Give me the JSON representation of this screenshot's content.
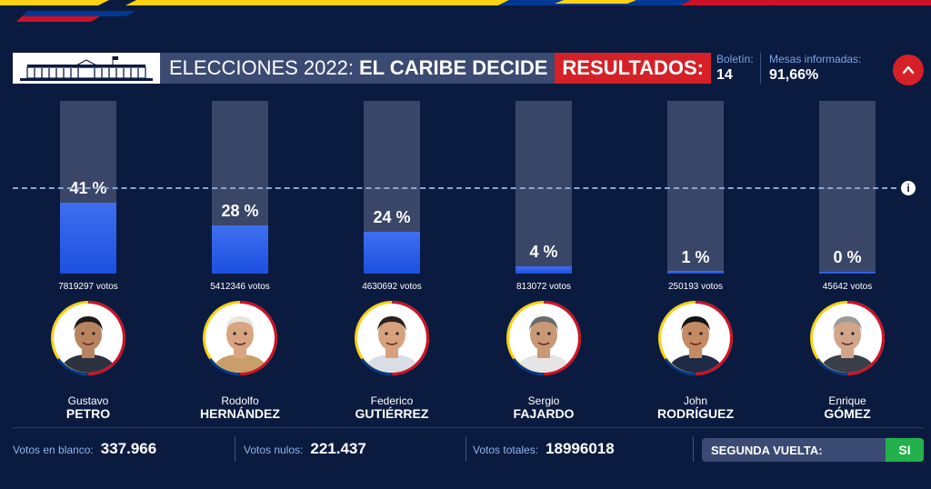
{
  "header": {
    "title_light": "ELECCIONES 2022:",
    "title_bold": "EL CARIBE DECIDE",
    "results_label": "RESULTADOS:"
  },
  "meta": {
    "bulletin_label": "Boletín:",
    "bulletin_value": "14",
    "tables_label": "Mesas informadas:",
    "tables_value": "91,66%"
  },
  "colors": {
    "background": "#0b1b3f",
    "bar_fill": "#1c4fe0",
    "accent_red": "#d62027",
    "accent_green": "#22b14c",
    "flag_yellow": "#fcd116",
    "flag_blue": "#003893",
    "flag_red": "#ce1126"
  },
  "candidates": [
    {
      "pct_label": "41 %",
      "pct_value": 41,
      "votes": "7819297 votos",
      "first_name": "Gustavo",
      "last_name": "PETRO",
      "suit": "#2d3240",
      "skin": "#b88360",
      "hair": "#1c1a1a"
    },
    {
      "pct_label": "28 %",
      "pct_value": 28,
      "votes": "5412346 votos",
      "first_name": "Rodolfo",
      "last_name": "HERNÁNDEZ",
      "suit": "#c99e6a",
      "skin": "#d8a481",
      "hair": "#e8e4de"
    },
    {
      "pct_label": "24 %",
      "pct_value": 24,
      "votes": "4630692 votos",
      "first_name": "Federico",
      "last_name": "GUTIÉRREZ",
      "suit": "#d9dee6",
      "skin": "#d6a27e",
      "hair": "#2a2220"
    },
    {
      "pct_label": "4 %",
      "pct_value": 4,
      "votes": "813072 votos",
      "first_name": "Sergio",
      "last_name": "FAJARDO",
      "suit": "#e5e5e5",
      "skin": "#c99876",
      "hair": "#6b6b6b"
    },
    {
      "pct_label": "1 %",
      "pct_value": 1,
      "votes": "250193 votos",
      "first_name": "John",
      "last_name": "RODRÍGUEZ",
      "suit": "#1f2a44",
      "skin": "#c48a63",
      "hair": "#141414"
    },
    {
      "pct_label": "0 %",
      "pct_value": 0,
      "votes": "45642 votos",
      "first_name": "Enrique",
      "last_name": "GÓMEZ",
      "suit": "#3a3f4a",
      "skin": "#d1a58a",
      "hair": "#9a9a9a"
    }
  ],
  "footer": {
    "blank_label": "Votos en blanco:",
    "blank_value": "337.966",
    "null_label": "Votos nulos:",
    "null_value": "221.437",
    "total_label": "Votos totales:",
    "total_value": "18996018",
    "runoff_label": "SEGUNDA VUELTA:",
    "runoff_value": "SI"
  },
  "icons": [
    "capitol-building-icon",
    "chevron-up-icon",
    "info-icon"
  ]
}
